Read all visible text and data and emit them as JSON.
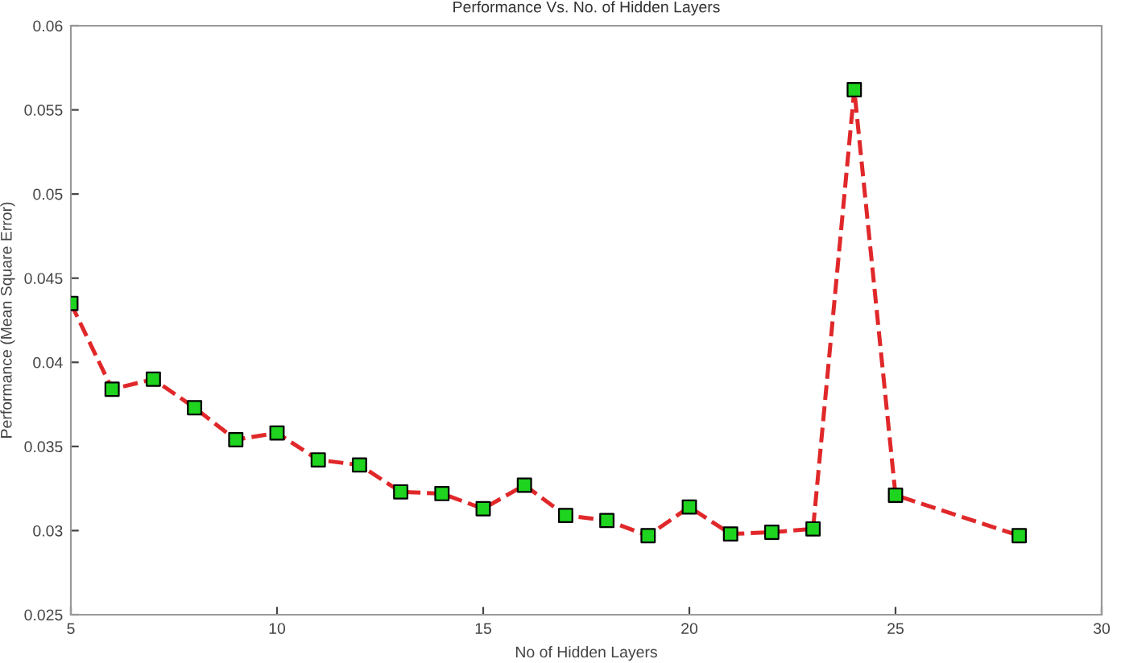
{
  "chart_data": {
    "type": "line",
    "title": "Performance Vs. No. of Hidden Layers",
    "xlabel": "No of Hidden Layers",
    "ylabel": "Performance (Mean Square Error)",
    "x": [
      5,
      6,
      7,
      8,
      9,
      10,
      11,
      12,
      13,
      14,
      15,
      16,
      17,
      18,
      19,
      20,
      21,
      22,
      23,
      24,
      25,
      28
    ],
    "series": [
      {
        "color": "#e0282a",
        "colors": [
          "#1ed41e",
          "#1ed41e",
          "#1ed41e",
          "#1ed41e",
          "#1ed41e",
          "#1ed41e",
          "#1ed41e",
          "#1ed41e",
          "#1ed41e",
          "#1ed41e",
          "#1ed41e",
          "#1ed41e",
          "#1ed41e",
          "#1ed41e",
          "#1ed41e",
          "#1ed41e",
          "#1ed41e",
          "#1ed41e",
          "#1ed41e",
          "#1ed41e",
          "#1ed41e",
          "#1ed41e"
        ],
        "values": [
          0.0435,
          0.0384,
          0.039,
          0.0373,
          0.0354,
          0.0358,
          0.0342,
          0.0339,
          0.0323,
          0.0322,
          0.0313,
          0.0327,
          0.0309,
          0.0306,
          0.0297,
          0.0314,
          0.0298,
          0.0299,
          0.0301,
          0.0562,
          0.0321,
          0.0297
        ]
      }
    ],
    "xlim": [
      5,
      30
    ],
    "xticks": [
      5,
      10,
      15,
      20,
      25,
      30
    ],
    "ylim": [
      0.025,
      0.06
    ],
    "yticks": [
      0.025,
      0.03,
      0.035,
      0.04,
      0.045,
      0.05,
      0.055,
      0.06
    ],
    "marker": "square",
    "line_style": "dashed",
    "grid": false,
    "legend": false
  }
}
